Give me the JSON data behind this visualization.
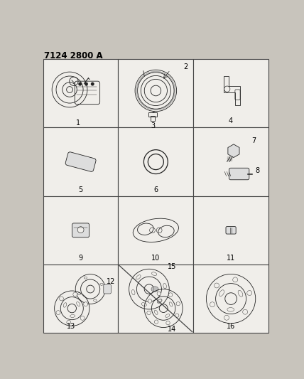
{
  "title": "7124 2800 A",
  "bg_color": "#c8c4bc",
  "cell_bg": "#f0eeea",
  "figsize": [
    4.28,
    5.33
  ],
  "dpi": 100,
  "title_fontsize": 8.5,
  "label_fontsize": 7,
  "draw_color": "#222222",
  "border_color": "#444444",
  "grid_rows": 4,
  "grid_cols": 3
}
